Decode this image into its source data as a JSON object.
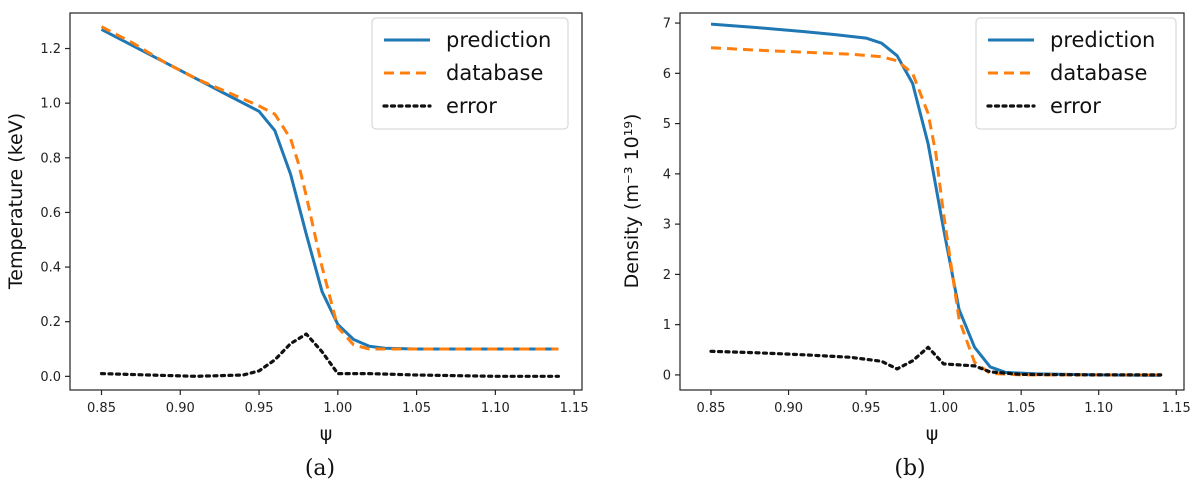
{
  "chart_data": [
    {
      "type": "line",
      "caption": "(a)",
      "xlabel": "ψ",
      "ylabel": "Temperature (keV)",
      "xlim": [
        0.83,
        1.155
      ],
      "ylim": [
        -0.05,
        1.33
      ],
      "xticks": [
        0.85,
        0.9,
        0.95,
        1.0,
        1.05,
        1.1,
        1.15
      ],
      "xtick_labels": [
        "0.85",
        "0.90",
        "0.95",
        "1.00",
        "1.05",
        "1.10",
        "1.15"
      ],
      "yticks": [
        0.0,
        0.2,
        0.4,
        0.6,
        0.8,
        1.0,
        1.2
      ],
      "ytick_labels": [
        "0.0",
        "0.2",
        "0.4",
        "0.6",
        "0.8",
        "1.0",
        "1.2"
      ],
      "grid": false,
      "legend_position": "top-right",
      "series": [
        {
          "name": "prediction",
          "style": "solid",
          "color": "#1f77b4",
          "x": [
            0.85,
            0.87,
            0.89,
            0.91,
            0.93,
            0.95,
            0.96,
            0.97,
            0.98,
            0.99,
            1.0,
            1.01,
            1.02,
            1.03,
            1.05,
            1.1,
            1.14
          ],
          "y": [
            1.27,
            1.21,
            1.15,
            1.09,
            1.03,
            0.97,
            0.9,
            0.74,
            0.52,
            0.31,
            0.19,
            0.135,
            0.11,
            0.103,
            0.1,
            0.1,
            0.1
          ]
        },
        {
          "name": "database",
          "style": "dashed",
          "color": "#ff7f0e",
          "x": [
            0.85,
            0.87,
            0.89,
            0.91,
            0.93,
            0.95,
            0.96,
            0.97,
            0.975,
            0.98,
            0.99,
            1.0,
            1.01,
            1.02,
            1.03,
            1.05,
            1.1,
            1.14
          ],
          "y": [
            1.28,
            1.22,
            1.15,
            1.09,
            1.04,
            0.99,
            0.96,
            0.87,
            0.78,
            0.66,
            0.4,
            0.18,
            0.115,
            0.1,
            0.1,
            0.1,
            0.1,
            0.1
          ]
        },
        {
          "name": "error",
          "style": "dotted",
          "color": "#111111",
          "x": [
            0.85,
            0.88,
            0.91,
            0.94,
            0.95,
            0.96,
            0.97,
            0.98,
            0.99,
            1.0,
            1.02,
            1.05,
            1.1,
            1.14
          ],
          "y": [
            0.01,
            0.005,
            0.0,
            0.005,
            0.02,
            0.06,
            0.12,
            0.155,
            0.09,
            0.01,
            0.01,
            0.005,
            0.0,
            0.0
          ]
        }
      ]
    },
    {
      "type": "line",
      "caption": "(b)",
      "xlabel": "ψ",
      "ylabel": "Density (m⁻³ 10¹⁹)",
      "xlim": [
        0.83,
        1.155
      ],
      "ylim": [
        -0.3,
        7.2
      ],
      "xticks": [
        0.85,
        0.9,
        0.95,
        1.0,
        1.05,
        1.1,
        1.15
      ],
      "xtick_labels": [
        "0.85",
        "0.90",
        "0.95",
        "1.00",
        "1.05",
        "1.10",
        "1.15"
      ],
      "yticks": [
        0,
        1,
        2,
        3,
        4,
        5,
        6,
        7
      ],
      "ytick_labels": [
        "0",
        "1",
        "2",
        "3",
        "4",
        "5",
        "6",
        "7"
      ],
      "grid": false,
      "legend_position": "top-right",
      "series": [
        {
          "name": "prediction",
          "style": "solid",
          "color": "#1f77b4",
          "x": [
            0.85,
            0.88,
            0.91,
            0.93,
            0.95,
            0.96,
            0.97,
            0.98,
            0.99,
            1.0,
            1.01,
            1.02,
            1.03,
            1.04,
            1.06,
            1.1,
            1.14
          ],
          "y": [
            6.98,
            6.91,
            6.83,
            6.77,
            6.7,
            6.6,
            6.35,
            5.8,
            4.6,
            2.9,
            1.3,
            0.55,
            0.16,
            0.05,
            0.02,
            0.0,
            -0.01
          ],
          "_": 0
        },
        {
          "name": "database",
          "style": "dashed",
          "color": "#ff7f0e",
          "x": [
            0.85,
            0.88,
            0.91,
            0.94,
            0.96,
            0.97,
            0.98,
            0.99,
            0.995,
            1.0,
            1.01,
            1.02,
            1.03,
            1.05,
            1.1,
            1.14
          ],
          "y": [
            6.51,
            6.46,
            6.42,
            6.38,
            6.33,
            6.25,
            6.0,
            5.2,
            4.4,
            3.2,
            1.1,
            0.25,
            0.03,
            0.0,
            0.0,
            0.0
          ]
        },
        {
          "name": "error",
          "style": "dotted",
          "color": "#111111",
          "x": [
            0.85,
            0.88,
            0.91,
            0.94,
            0.96,
            0.97,
            0.98,
            0.99,
            1.0,
            1.01,
            1.02,
            1.03,
            1.05,
            1.1,
            1.14
          ],
          "y": [
            0.47,
            0.44,
            0.4,
            0.35,
            0.27,
            0.12,
            0.28,
            0.55,
            0.22,
            0.2,
            0.18,
            0.06,
            0.01,
            0.0,
            0.0
          ]
        }
      ]
    }
  ]
}
